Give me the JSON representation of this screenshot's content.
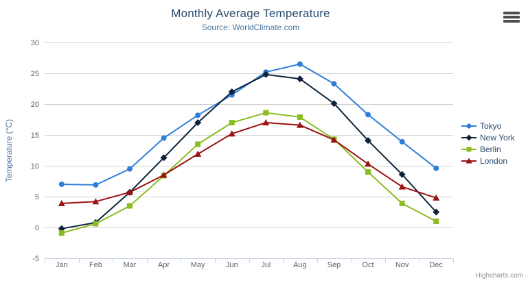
{
  "chart_data": {
    "type": "line",
    "title": "Monthly Average Temperature",
    "subtitle": "Source: WorldClimate.com",
    "xlabel": "",
    "ylabel": "Temperature (°C)",
    "ylim": [
      -5,
      30
    ],
    "ytick_step": 5,
    "grid": true,
    "legend_position": "right",
    "categories": [
      "Jan",
      "Feb",
      "Mar",
      "Apr",
      "May",
      "Jun",
      "Jul",
      "Aug",
      "Sep",
      "Oct",
      "Nov",
      "Dec"
    ],
    "series": [
      {
        "name": "Tokyo",
        "color": "#2f7ed8",
        "marker": "circle",
        "values": [
          7.0,
          6.9,
          9.5,
          14.5,
          18.2,
          21.5,
          25.2,
          26.5,
          23.3,
          18.3,
          13.9,
          9.6
        ]
      },
      {
        "name": "New York",
        "color": "#0d233a",
        "marker": "diamond",
        "values": [
          -0.2,
          0.8,
          5.7,
          11.3,
          17.0,
          22.0,
          24.8,
          24.1,
          20.1,
          14.1,
          8.6,
          2.5
        ]
      },
      {
        "name": "Berlin",
        "color": "#8bbc21",
        "marker": "square",
        "values": [
          -0.9,
          0.6,
          3.5,
          8.4,
          13.5,
          17.0,
          18.6,
          17.9,
          14.3,
          9.0,
          3.9,
          1.0
        ]
      },
      {
        "name": "London",
        "color": "#991111",
        "marker": "triangle",
        "values": [
          3.9,
          4.2,
          5.7,
          8.5,
          11.9,
          15.2,
          17.0,
          16.6,
          14.2,
          10.3,
          6.6,
          4.8
        ]
      }
    ],
    "credits": "Highcharts.com",
    "icons": {
      "export_menu": "hamburger-icon"
    },
    "colors": {
      "title": "#274b6d",
      "subtitle": "#4d759e",
      "axis_title": "#4d759e",
      "tick_label": "#606060",
      "grid_line": "#d2d2d2",
      "axis_line": "#c0d0e0",
      "legend_text": "#274b6d",
      "credits": "#909090",
      "export_icon": "#4d4d4d"
    }
  }
}
